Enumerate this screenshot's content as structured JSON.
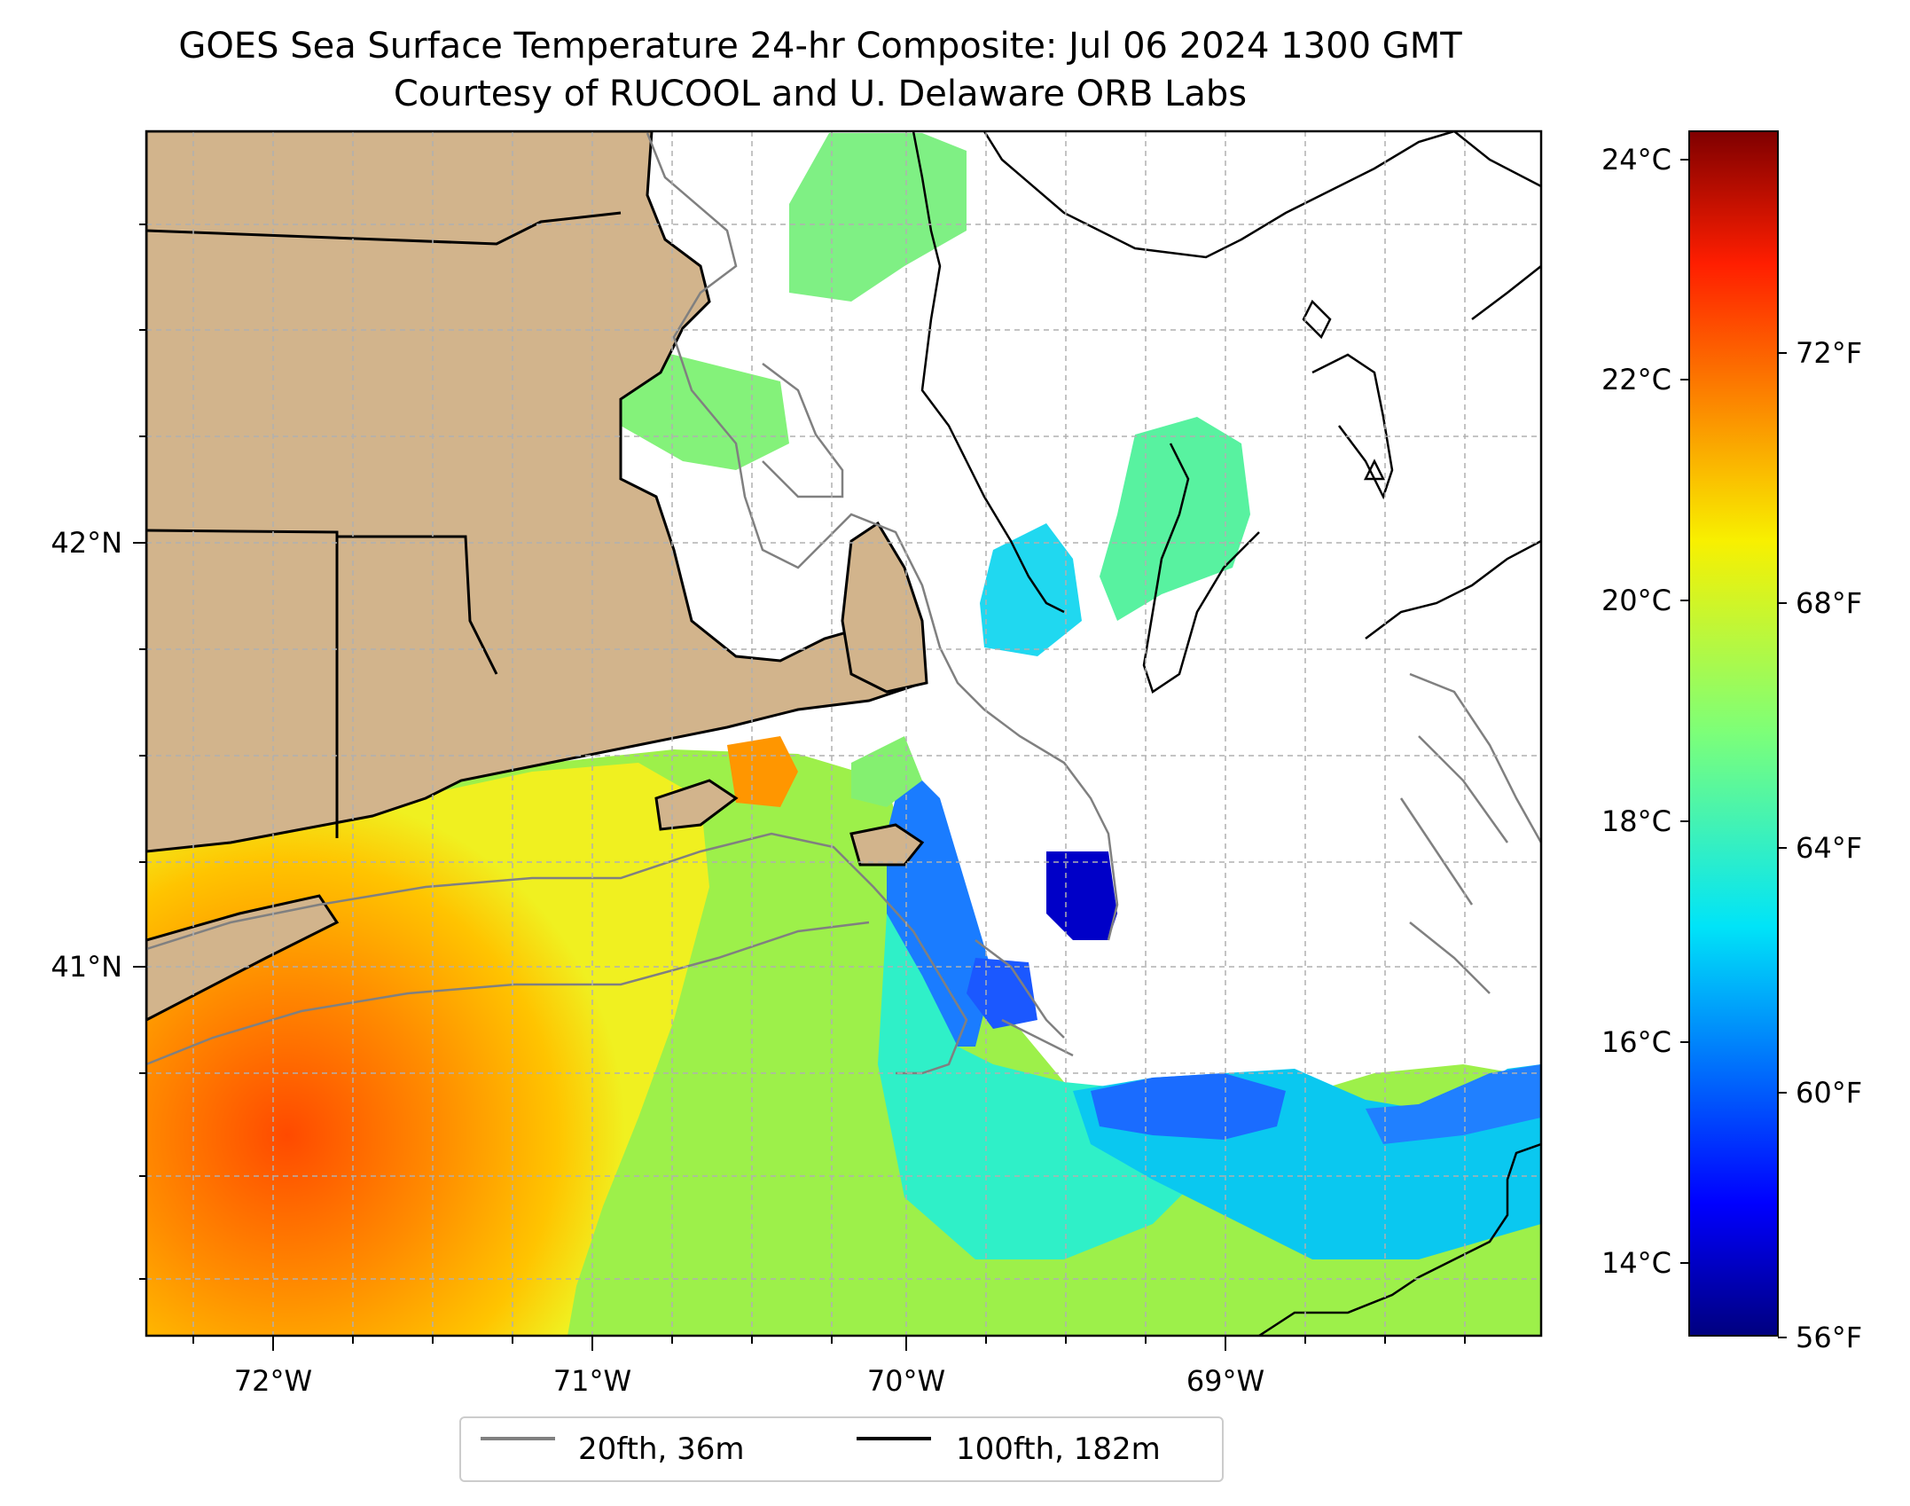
{
  "title": {
    "line1": "GOES Sea Surface Temperature 24-hr Composite: Jul 06 2024 1300 GMT",
    "line2": "Courtesy of RUCOOL and U. Delaware ORB Labs"
  },
  "map": {
    "lon_ticks": [
      "72°W",
      "71°W",
      "70°W",
      "69°W"
    ],
    "lat_ticks": [
      "42°N",
      "41°N"
    ],
    "colors": {
      "land": "#d2b48c",
      "contour_20fth": "#808080",
      "contour_100fth": "#000000",
      "grid": "#b0b0b0"
    }
  },
  "colorbar": {
    "celsius_ticks": [
      "24°C",
      "22°C",
      "20°C",
      "18°C",
      "16°C",
      "14°C"
    ],
    "fahrenheit_ticks": [
      "72°F",
      "68°F",
      "64°F",
      "60°F",
      "56°F"
    ],
    "colormap": "jet",
    "range_c": [
      13.3,
      24.2
    ]
  },
  "legend": {
    "items": [
      {
        "label": "20fth, 36m",
        "color": "#808080"
      },
      {
        "label": "100fth, 182m",
        "color": "#000000"
      }
    ]
  }
}
